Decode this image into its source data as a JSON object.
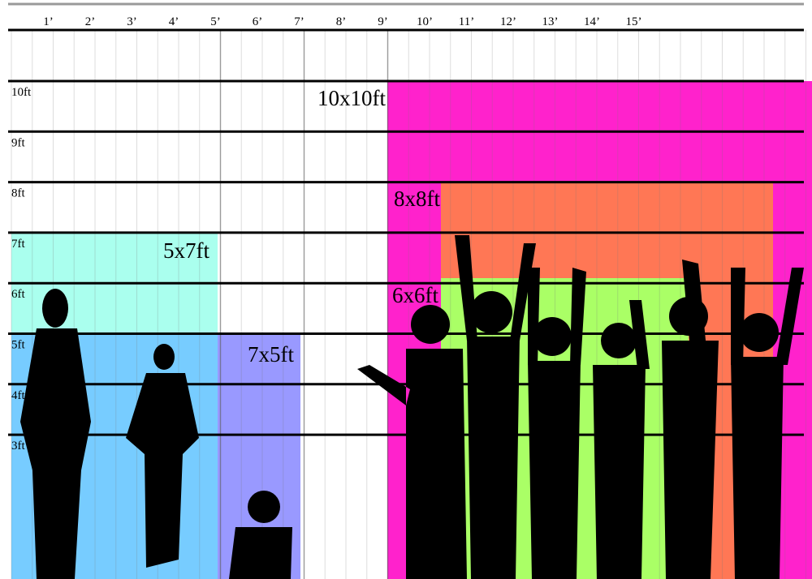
{
  "column_labels": [
    "1’",
    "2’",
    "3’",
    "4’",
    "5’",
    "6’",
    "7’",
    "8’",
    "9’",
    "10’",
    "11’",
    "12’",
    "13’",
    "14’",
    "15’"
  ],
  "row_labels": [
    "10ft",
    "9ft",
    "8ft",
    "7ft",
    "6ft",
    "5ft",
    "4ft",
    "3ft"
  ],
  "boxes": [
    {
      "label": "10x10ft"
    },
    {
      "label": "8x8ft"
    },
    {
      "label": "6x6ft"
    },
    {
      "label": "5x7ft"
    },
    {
      "label": "7x5ft"
    }
  ]
}
